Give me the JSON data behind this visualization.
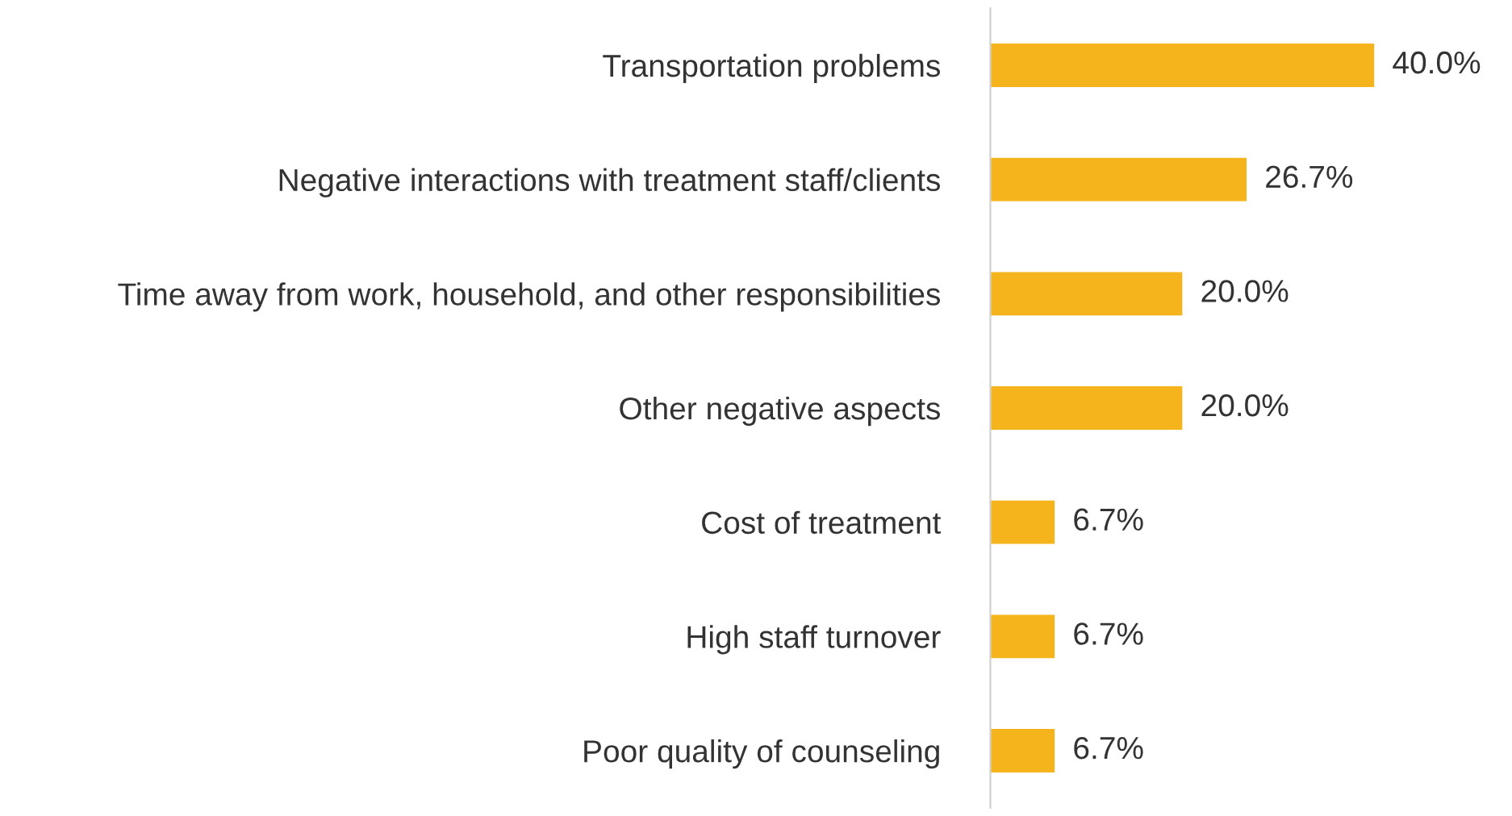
{
  "chart_data": {
    "type": "bar",
    "orientation": "horizontal",
    "categories": [
      "Transportation problems",
      "Negative interactions with treatment staff/clients",
      "Time away from work, household, and other responsibilities",
      "Other negative aspects",
      "Cost of treatment",
      "High staff turnover",
      "Poor quality of counseling"
    ],
    "values": [
      40.0,
      26.7,
      20.0,
      20.0,
      6.7,
      6.7,
      6.7
    ],
    "value_labels": [
      "40.0%",
      "26.7%",
      "20.0%",
      "20.0%",
      "6.7%",
      "6.7%",
      "6.7%"
    ],
    "color": "#f5b41c",
    "grid": false,
    "legend": false,
    "tick_labels": false
  }
}
